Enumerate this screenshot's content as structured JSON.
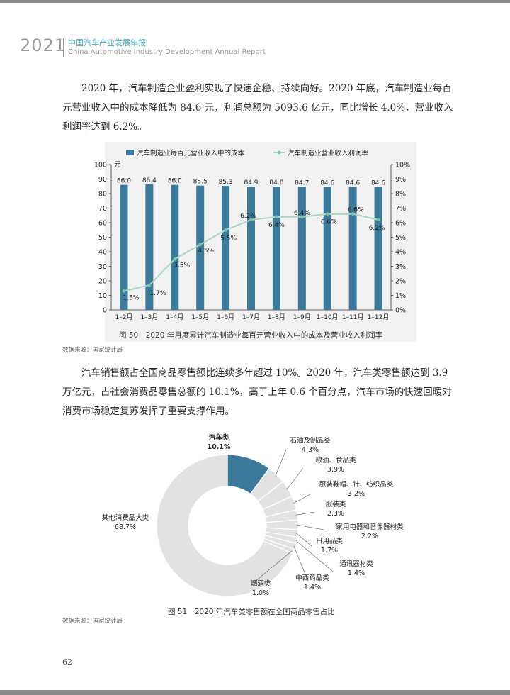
{
  "header": {
    "year": "2021",
    "title_cn": "中国汽车产业发展年报",
    "title_en": "China Automotive Industry Development Annual Report"
  },
  "paragraphs": [
    "2020 年，汽车制造企业盈利实现了快速企稳、持续向好。2020 年底，汽车制造业每百元营业收入中的成本降低为 84.6 元，利润总额为 5093.6 亿元，同比增长 4.0%，营业收入利润率达到 6.2%。",
    "汽车销售额占全国商品零售额比连续多年超过 10%。2020 年，汽车类零售额达到 3.9 万亿元，占社会消费品零售总额的 10.1%，高于上年 0.6 个百分点，汽车市场的快速回暖对消费市场稳定复苏发挥了重要支撑作用。"
  ],
  "figure50": {
    "caption": "图 50　2020 年月度累计汽车制造业每百元营业收入中的成本及营业收入利润率",
    "source": "数据来源：国家统计局"
  },
  "figure51": {
    "caption": "图 51　2020 年汽车类零售额在全国商品零售占比",
    "source": "数据来源：国家统计局"
  },
  "page_number": "62",
  "chart_data": [
    {
      "type": "bar",
      "categories": [
        "1–2月",
        "1–3月",
        "1–4月",
        "1–5月",
        "1–6月",
        "1–7月",
        "1–8月",
        "1–9月",
        "1–10月",
        "1–11月",
        "1–12月"
      ],
      "series": [
        {
          "name": "汽车制造业每百元营业收入中的成本",
          "type": "bar",
          "axis": "left",
          "values": [
            86.0,
            86.4,
            86.0,
            85.5,
            85.3,
            84.9,
            84.8,
            84.7,
            84.6,
            84.6,
            84.6
          ],
          "labels": [
            "86.0",
            "86.4",
            "86.0",
            "85.5",
            "85.3",
            "84.9",
            "84.8",
            "84.7",
            "84.6",
            "84.6",
            "84.6"
          ]
        },
        {
          "name": "汽车制造业营业收入利润率",
          "type": "line",
          "axis": "right",
          "values": [
            1.3,
            1.7,
            3.5,
            4.5,
            5.5,
            6.2,
            6.4,
            6.4,
            6.6,
            6.6,
            6.2
          ],
          "labels": [
            "1.3%",
            "1.7%",
            "3.5%",
            "4.5%",
            "5.5%",
            "6.2%",
            "6.4%",
            "6.4%",
            "6.6%",
            "6.6%",
            "6.2%"
          ]
        }
      ],
      "ylabel": "元",
      "ylim": [
        0,
        100
      ],
      "yticks": [
        "0",
        "10",
        "20",
        "30",
        "40",
        "50",
        "60",
        "70",
        "80",
        "90",
        "100"
      ],
      "y2lim": [
        0,
        10
      ],
      "y2ticks": [
        "0%",
        "1%",
        "2%",
        "3%",
        "4%",
        "5%",
        "6%",
        "7%",
        "8%",
        "9%",
        "10%"
      ],
      "legend": "top",
      "colors": {
        "bar": "#3b7a9b",
        "line": "#a9d6c0",
        "line_marker": "#7fbfa3"
      }
    },
    {
      "type": "pie",
      "donut": true,
      "slices": [
        {
          "name": "汽车类",
          "value": 10.1,
          "label": "10.1%"
        },
        {
          "name": "石油及制品类",
          "value": 4.3,
          "label": "4.3%"
        },
        {
          "name": "粮油、食品类",
          "value": 3.9,
          "label": "3.9%"
        },
        {
          "name": "服装鞋帽、针、纺织品类",
          "value": 3.2,
          "label": "3.2%"
        },
        {
          "name": "服装类",
          "value": 2.3,
          "label": "2.3%"
        },
        {
          "name": "家用电器和音像器材类",
          "value": 2.2,
          "label": "2.2%"
        },
        {
          "name": "日用品类",
          "value": 1.7,
          "label": "1.7%"
        },
        {
          "name": "通讯器材类",
          "value": 1.4,
          "label": "1.4%"
        },
        {
          "name": "中西药品类",
          "value": 1.4,
          "label": "1.4%"
        },
        {
          "name": "烟酒类",
          "value": 1.0,
          "label": "1.0%"
        },
        {
          "name": "其他消费品大类",
          "value": 68.7,
          "label": "68.7%"
        }
      ],
      "colors": {
        "highlight": "#3b7a9b",
        "other": "#e2e2e2",
        "edge": "#ffffff"
      }
    }
  ]
}
